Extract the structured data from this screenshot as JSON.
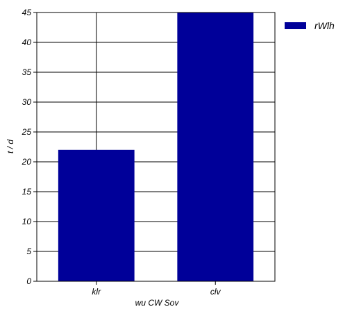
{
  "chart_data": {
    "type": "bar",
    "title": "",
    "xlabel": "wu CW Sov",
    "ylabel": "t / d",
    "categories": [
      "klr",
      "clv"
    ],
    "series": [
      {
        "name": "rWlh",
        "values": [
          22,
          45
        ],
        "color": "#000099"
      }
    ],
    "ylim": [
      0,
      45
    ],
    "yticks": [
      0,
      5,
      10,
      15,
      20,
      25,
      30,
      35,
      40,
      45
    ],
    "grid": true,
    "legend": "top-right"
  }
}
